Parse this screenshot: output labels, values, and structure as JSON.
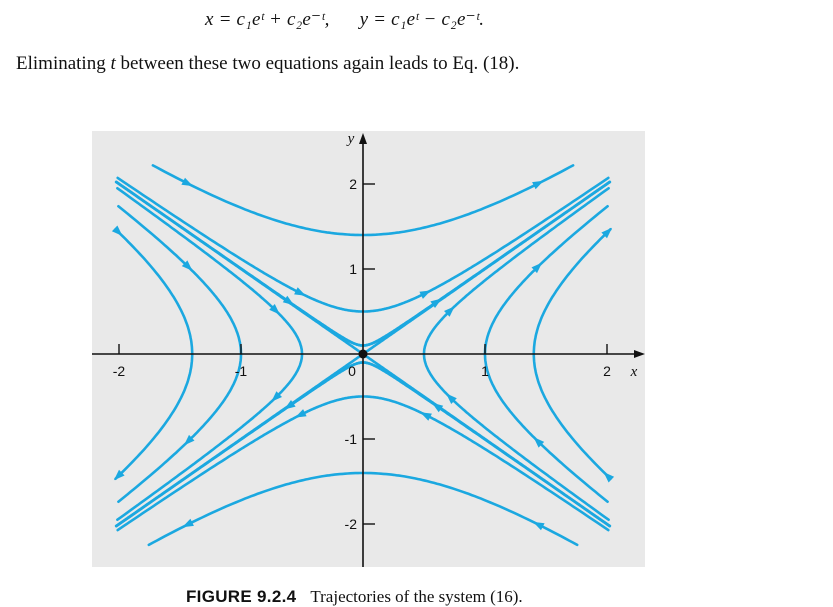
{
  "equation": {
    "x_part": "x = c₁eᵗ + c₂e⁻ᵗ,",
    "y_part": "y = c₁eᵗ − c₂e⁻ᵗ."
  },
  "paragraph": {
    "before": "Eliminating ",
    "variable": "t",
    "after": " between these two equations again leads to Eq. (18)."
  },
  "figure": {
    "label": "FIGURE 9.2.4",
    "caption": "Trajectories of the system (16)."
  },
  "chart_data": {
    "type": "phase-portrait",
    "xlabel": "x",
    "ylabel": "y",
    "xlim": [
      -2.0,
      2.0
    ],
    "ylim": [
      -2.1,
      2.1
    ],
    "x_ticks": [
      "-2",
      "-1",
      "0",
      "1",
      "2"
    ],
    "y_ticks": [
      "2",
      "1",
      "0",
      "-1",
      "-2"
    ],
    "grid": false,
    "color": "#1ba8e0",
    "equilibrium": [
      0,
      0
    ],
    "separatrices": [
      {
        "name": "",
        "line": "y = x",
        "direction": "outward"
      },
      {
        "name": "",
        "line": "y = -x",
        "direction": "inward"
      }
    ],
    "vertical_opening_hyperbolas_vertex_y": [
      1.4,
      0.5,
      -0.5,
      -1.4
    ],
    "horizontal_opening_hyperbolas_vertex_x": [
      1.4,
      1.0,
      0.5,
      -0.5,
      -1.0,
      -1.4
    ],
    "near_separatrix_curves": [
      {
        "branch": "upper",
        "side": "left",
        "offset": 0.1
      },
      {
        "branch": "upper",
        "side": "right",
        "offset": 0.1
      },
      {
        "branch": "lower",
        "side": "left",
        "offset": 0.1
      },
      {
        "branch": "lower",
        "side": "right",
        "offset": 0.1
      }
    ]
  }
}
